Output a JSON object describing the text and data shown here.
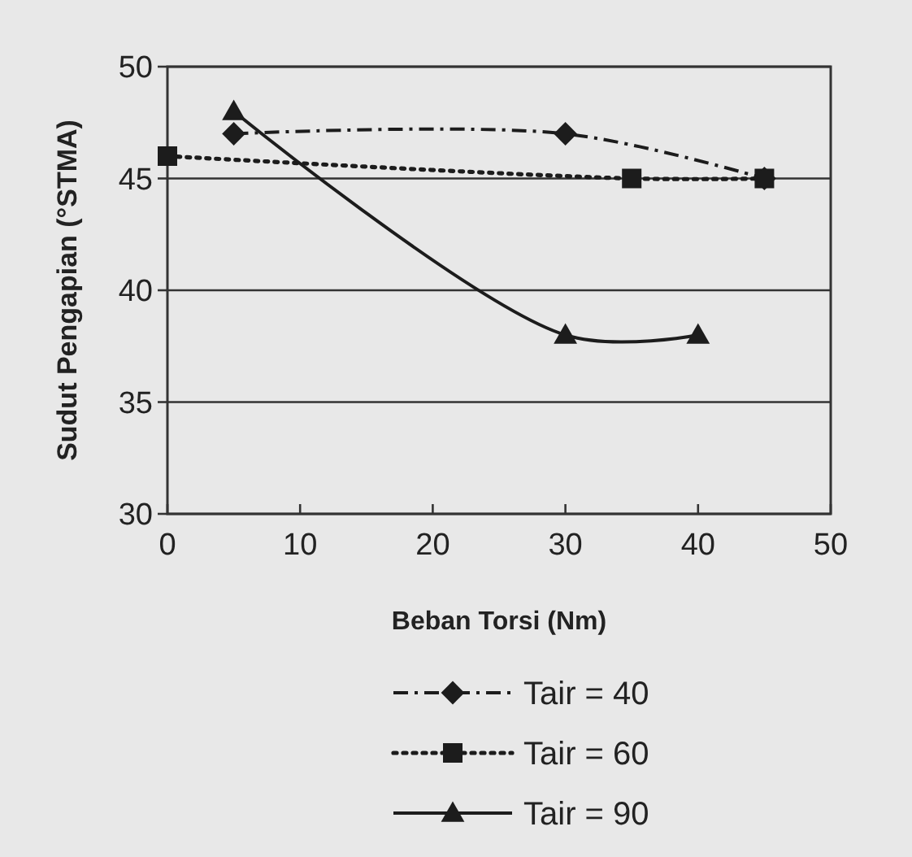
{
  "chart_data": {
    "type": "line",
    "xlabel": "Beban Torsi (Nm)",
    "ylabel": "Sudut Pengapian (°STMA)",
    "xlim": [
      0,
      50
    ],
    "xticks": [
      0,
      10,
      20,
      30,
      40,
      50
    ],
    "ylim": [
      30,
      50
    ],
    "yticks": [
      30,
      35,
      40,
      45,
      50
    ],
    "grid": "y",
    "legend": "bottom",
    "series": [
      {
        "name": "Tair = 40",
        "color": "#1c1c1c",
        "x": [
          5,
          30,
          45
        ],
        "values": [
          47,
          47,
          45
        ],
        "marker": "diamond",
        "line_style": "dashed"
      },
      {
        "name": "Tair = 60",
        "color": "#1c1c1c",
        "x": [
          0,
          35,
          45
        ],
        "values": [
          46,
          45,
          45
        ],
        "marker": "square",
        "line_style": "dotted"
      },
      {
        "name": "Tair = 90",
        "color": "#1c1c1c",
        "x": [
          5,
          30,
          40
        ],
        "values": [
          48,
          38,
          38
        ],
        "marker": "triangle",
        "line_style": "solid"
      }
    ]
  }
}
